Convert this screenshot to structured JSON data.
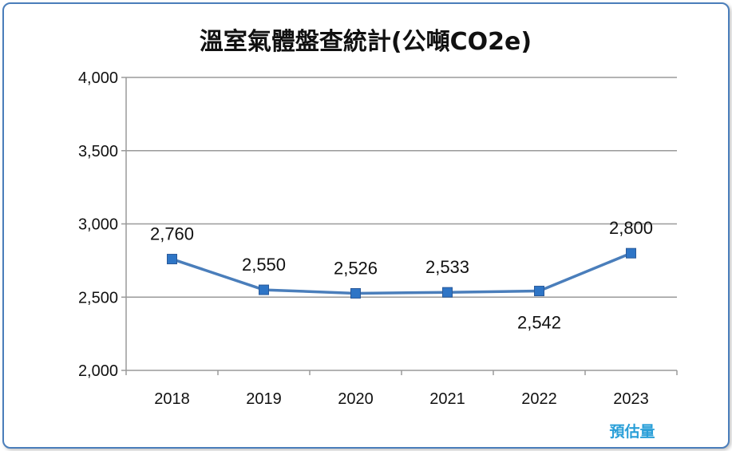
{
  "chart_data": {
    "type": "line",
    "title": "溫室氣體盤查統計(公噸CO2e)",
    "categories": [
      "2018",
      "2019",
      "2020",
      "2021",
      "2022",
      "2023"
    ],
    "series": [
      {
        "values": [
          2760,
          2550,
          2526,
          2533,
          2542,
          2800
        ],
        "color": "#4a7ebb"
      }
    ],
    "data_labels": [
      "2,760",
      "2,550",
      "2,526",
      "2,533",
      "2,542",
      "2,800"
    ],
    "y_ticks": [
      2000,
      2500,
      3000,
      3500,
      4000
    ],
    "y_tick_labels": [
      "2,000",
      "2,500",
      "3,000",
      "3,500",
      "4,000"
    ],
    "ylim": [
      2000,
      4000
    ],
    "grid": "horizontal",
    "annotation": "預估量",
    "colors": {
      "line": "#4a7ebb",
      "marker": "#2e75c6",
      "annotation": "#2a9fd8",
      "frame": "#4a7ebb"
    }
  }
}
